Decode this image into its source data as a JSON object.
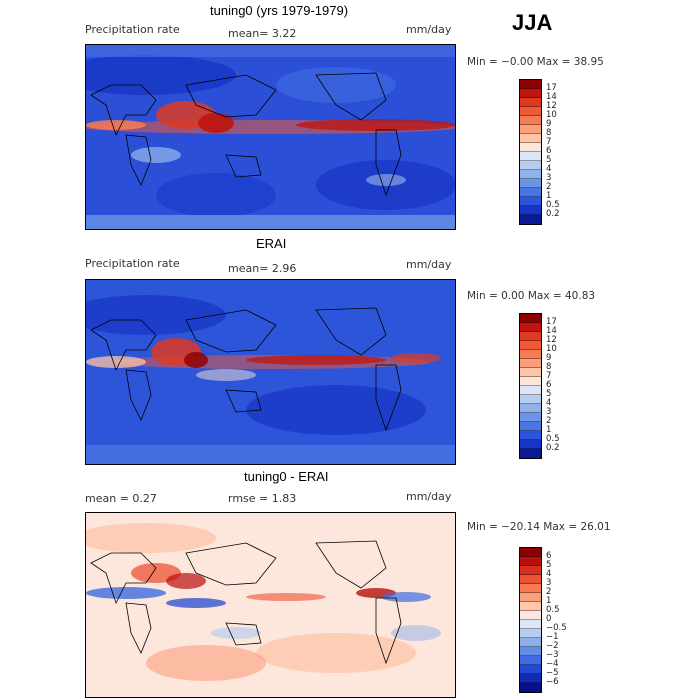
{
  "season": "JJA",
  "panels": [
    {
      "title": "tuning0 (yrs 1979-1979)",
      "field_label": "Precipitation rate",
      "stat1": "mean=   3.22",
      "stat2": "",
      "units": "mm/day",
      "minmax": "Min =  −0.00  Max =  38.95",
      "colorbar": {
        "labels": [
          "17",
          "14",
          "12",
          "10",
          "9",
          "8",
          "7",
          "6",
          "5",
          "4",
          "3",
          "2",
          "1",
          "0.5",
          "0.2"
        ],
        "colors": [
          "#8b0000",
          "#c0140e",
          "#de3a22",
          "#ef5a36",
          "#f77b52",
          "#fb9f7a",
          "#fdc4a6",
          "#fde6d6",
          "#d9e6f6",
          "#b4cdef",
          "#8fb2ea",
          "#6c94e6",
          "#4a76e3",
          "#2d55d9",
          "#1734c4",
          "#0a1a96"
        ]
      }
    },
    {
      "title": "ERAI",
      "field_label": "Precipitation rate",
      "stat1": "mean=   2.96",
      "stat2": "",
      "units": "mm/day",
      "minmax": "Min =   0.00  Max =  40.83",
      "colorbar": {
        "labels": [
          "17",
          "14",
          "12",
          "10",
          "9",
          "8",
          "7",
          "6",
          "5",
          "4",
          "3",
          "2",
          "1",
          "0.5",
          "0.2"
        ],
        "colors": [
          "#8b0000",
          "#c0140e",
          "#de3a22",
          "#ef5a36",
          "#f77b52",
          "#fb9f7a",
          "#fdc4a6",
          "#fde6d6",
          "#d9e6f6",
          "#b4cdef",
          "#8fb2ea",
          "#6c94e6",
          "#4a76e3",
          "#2d55d9",
          "#1734c4",
          "#0a1a96"
        ]
      }
    },
    {
      "title": "tuning0 - ERAI",
      "field_label": "",
      "stat1": "mean =    0.27",
      "stat2": "rmse =    1.83",
      "units": "mm/day",
      "minmax": "Min = −20.14  Max =  26.01",
      "colorbar": {
        "labels": [
          "6",
          "5",
          "4",
          "3",
          "2",
          "1",
          "0.5",
          "0",
          "−0.5",
          "−1",
          "−2",
          "−3",
          "−4",
          "−5",
          "−6"
        ],
        "colors": [
          "#8b0000",
          "#b8100d",
          "#d8301d",
          "#ec5234",
          "#f77b52",
          "#fba07d",
          "#fdc7ab",
          "#fde7dc",
          "#dbe7f7",
          "#b6cdef",
          "#8cafea",
          "#628ee5",
          "#3f6ce0",
          "#2449d2",
          "#1229b6",
          "#060f86"
        ]
      }
    }
  ]
}
